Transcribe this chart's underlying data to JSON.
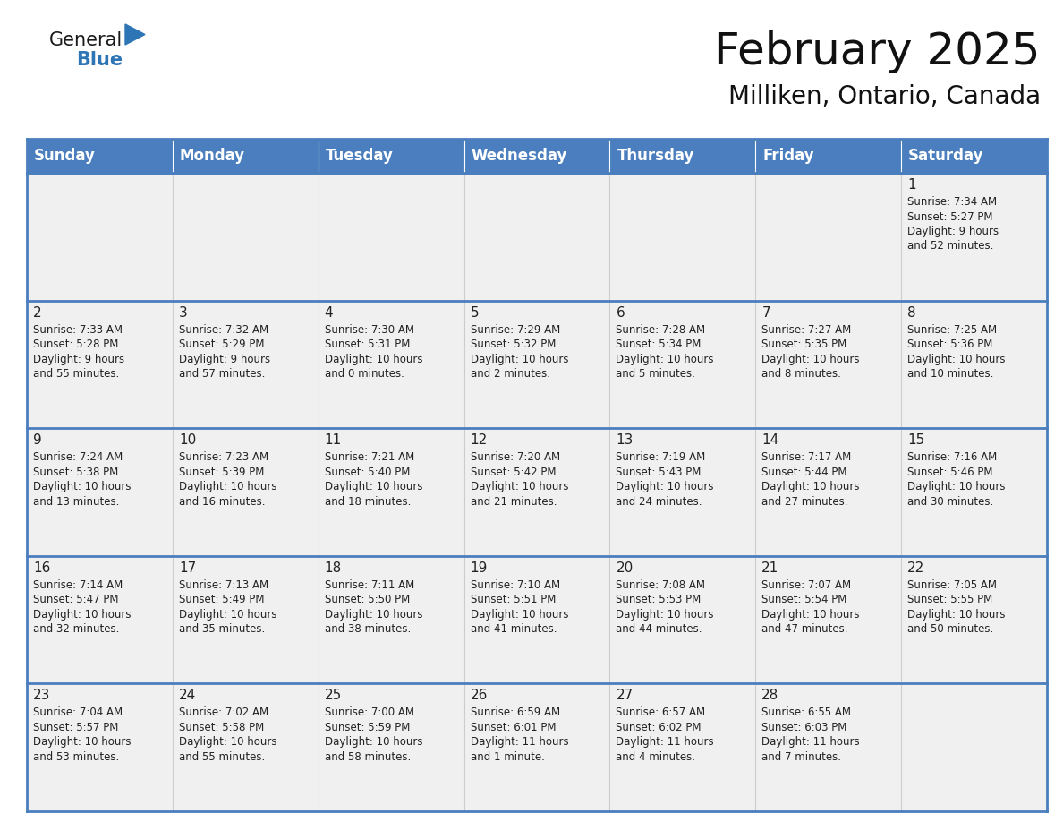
{
  "title": "February 2025",
  "subtitle": "Milliken, Ontario, Canada",
  "header_bg": "#4a7ebe",
  "header_text_color": "#ffffff",
  "cell_bg": "#f0f0f0",
  "cell_bg_white": "#ffffff",
  "border_color": "#4a7ebe",
  "separator_color": "#cccccc",
  "text_color": "#222222",
  "day_headers": [
    "Sunday",
    "Monday",
    "Tuesday",
    "Wednesday",
    "Thursday",
    "Friday",
    "Saturday"
  ],
  "days": [
    {
      "day": 1,
      "col": 6,
      "row": 0,
      "sunrise": "7:34 AM",
      "sunset": "5:27 PM",
      "daylight_h": "9 hours",
      "daylight_m": "and 52 minutes."
    },
    {
      "day": 2,
      "col": 0,
      "row": 1,
      "sunrise": "7:33 AM",
      "sunset": "5:28 PM",
      "daylight_h": "9 hours",
      "daylight_m": "and 55 minutes."
    },
    {
      "day": 3,
      "col": 1,
      "row": 1,
      "sunrise": "7:32 AM",
      "sunset": "5:29 PM",
      "daylight_h": "9 hours",
      "daylight_m": "and 57 minutes."
    },
    {
      "day": 4,
      "col": 2,
      "row": 1,
      "sunrise": "7:30 AM",
      "sunset": "5:31 PM",
      "daylight_h": "10 hours",
      "daylight_m": "and 0 minutes."
    },
    {
      "day": 5,
      "col": 3,
      "row": 1,
      "sunrise": "7:29 AM",
      "sunset": "5:32 PM",
      "daylight_h": "10 hours",
      "daylight_m": "and 2 minutes."
    },
    {
      "day": 6,
      "col": 4,
      "row": 1,
      "sunrise": "7:28 AM",
      "sunset": "5:34 PM",
      "daylight_h": "10 hours",
      "daylight_m": "and 5 minutes."
    },
    {
      "day": 7,
      "col": 5,
      "row": 1,
      "sunrise": "7:27 AM",
      "sunset": "5:35 PM",
      "daylight_h": "10 hours",
      "daylight_m": "and 8 minutes."
    },
    {
      "day": 8,
      "col": 6,
      "row": 1,
      "sunrise": "7:25 AM",
      "sunset": "5:36 PM",
      "daylight_h": "10 hours",
      "daylight_m": "and 10 minutes."
    },
    {
      "day": 9,
      "col": 0,
      "row": 2,
      "sunrise": "7:24 AM",
      "sunset": "5:38 PM",
      "daylight_h": "10 hours",
      "daylight_m": "and 13 minutes."
    },
    {
      "day": 10,
      "col": 1,
      "row": 2,
      "sunrise": "7:23 AM",
      "sunset": "5:39 PM",
      "daylight_h": "10 hours",
      "daylight_m": "and 16 minutes."
    },
    {
      "day": 11,
      "col": 2,
      "row": 2,
      "sunrise": "7:21 AM",
      "sunset": "5:40 PM",
      "daylight_h": "10 hours",
      "daylight_m": "and 18 minutes."
    },
    {
      "day": 12,
      "col": 3,
      "row": 2,
      "sunrise": "7:20 AM",
      "sunset": "5:42 PM",
      "daylight_h": "10 hours",
      "daylight_m": "and 21 minutes."
    },
    {
      "day": 13,
      "col": 4,
      "row": 2,
      "sunrise": "7:19 AM",
      "sunset": "5:43 PM",
      "daylight_h": "10 hours",
      "daylight_m": "and 24 minutes."
    },
    {
      "day": 14,
      "col": 5,
      "row": 2,
      "sunrise": "7:17 AM",
      "sunset": "5:44 PM",
      "daylight_h": "10 hours",
      "daylight_m": "and 27 minutes."
    },
    {
      "day": 15,
      "col": 6,
      "row": 2,
      "sunrise": "7:16 AM",
      "sunset": "5:46 PM",
      "daylight_h": "10 hours",
      "daylight_m": "and 30 minutes."
    },
    {
      "day": 16,
      "col": 0,
      "row": 3,
      "sunrise": "7:14 AM",
      "sunset": "5:47 PM",
      "daylight_h": "10 hours",
      "daylight_m": "and 32 minutes."
    },
    {
      "day": 17,
      "col": 1,
      "row": 3,
      "sunrise": "7:13 AM",
      "sunset": "5:49 PM",
      "daylight_h": "10 hours",
      "daylight_m": "and 35 minutes."
    },
    {
      "day": 18,
      "col": 2,
      "row": 3,
      "sunrise": "7:11 AM",
      "sunset": "5:50 PM",
      "daylight_h": "10 hours",
      "daylight_m": "and 38 minutes."
    },
    {
      "day": 19,
      "col": 3,
      "row": 3,
      "sunrise": "7:10 AM",
      "sunset": "5:51 PM",
      "daylight_h": "10 hours",
      "daylight_m": "and 41 minutes."
    },
    {
      "day": 20,
      "col": 4,
      "row": 3,
      "sunrise": "7:08 AM",
      "sunset": "5:53 PM",
      "daylight_h": "10 hours",
      "daylight_m": "and 44 minutes."
    },
    {
      "day": 21,
      "col": 5,
      "row": 3,
      "sunrise": "7:07 AM",
      "sunset": "5:54 PM",
      "daylight_h": "10 hours",
      "daylight_m": "and 47 minutes."
    },
    {
      "day": 22,
      "col": 6,
      "row": 3,
      "sunrise": "7:05 AM",
      "sunset": "5:55 PM",
      "daylight_h": "10 hours",
      "daylight_m": "and 50 minutes."
    },
    {
      "day": 23,
      "col": 0,
      "row": 4,
      "sunrise": "7:04 AM",
      "sunset": "5:57 PM",
      "daylight_h": "10 hours",
      "daylight_m": "and 53 minutes."
    },
    {
      "day": 24,
      "col": 1,
      "row": 4,
      "sunrise": "7:02 AM",
      "sunset": "5:58 PM",
      "daylight_h": "10 hours",
      "daylight_m": "and 55 minutes."
    },
    {
      "day": 25,
      "col": 2,
      "row": 4,
      "sunrise": "7:00 AM",
      "sunset": "5:59 PM",
      "daylight_h": "10 hours",
      "daylight_m": "and 58 minutes."
    },
    {
      "day": 26,
      "col": 3,
      "row": 4,
      "sunrise": "6:59 AM",
      "sunset": "6:01 PM",
      "daylight_h": "11 hours",
      "daylight_m": "and 1 minute."
    },
    {
      "day": 27,
      "col": 4,
      "row": 4,
      "sunrise": "6:57 AM",
      "sunset": "6:02 PM",
      "daylight_h": "11 hours",
      "daylight_m": "and 4 minutes."
    },
    {
      "day": 28,
      "col": 5,
      "row": 4,
      "sunrise": "6:55 AM",
      "sunset": "6:03 PM",
      "daylight_h": "11 hours",
      "daylight_m": "and 7 minutes."
    }
  ],
  "num_rows": 5,
  "num_cols": 7
}
